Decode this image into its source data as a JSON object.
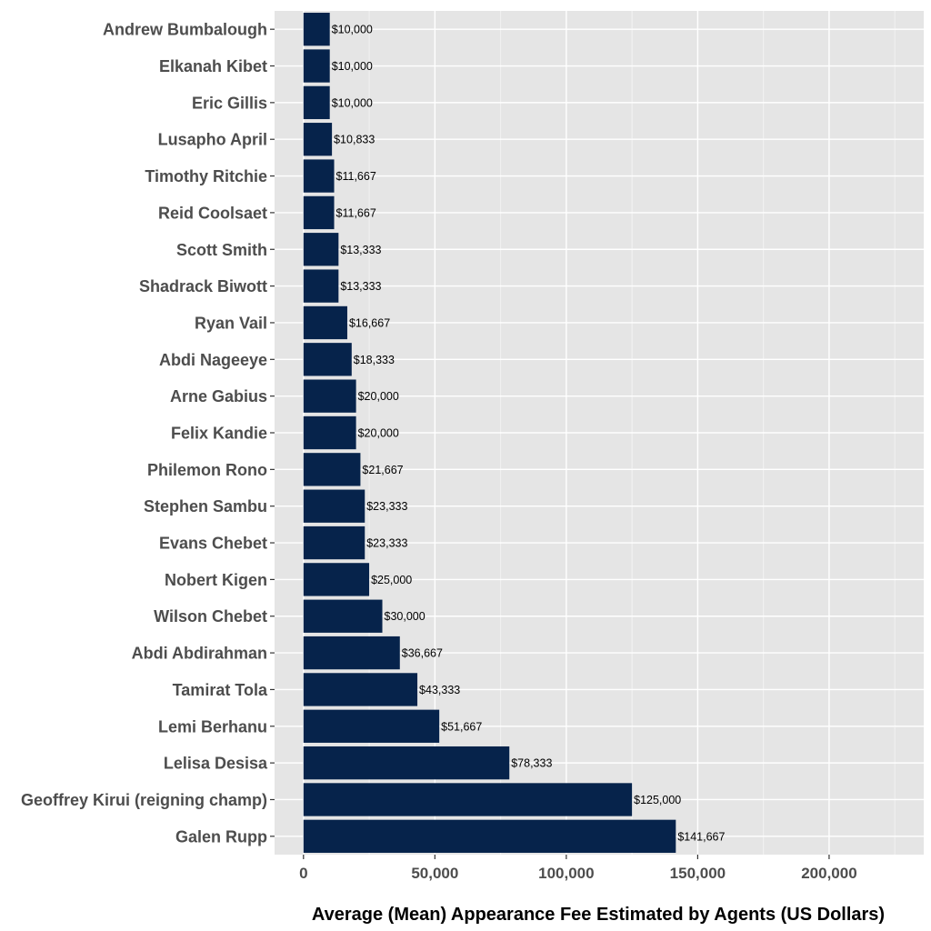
{
  "chart_data": {
    "type": "bar",
    "orientation": "horizontal",
    "title": "",
    "xlabel": "Average (Mean) Appearance Fee Estimated by Agents (US Dollars)",
    "ylabel": "",
    "xlim": [
      -11000,
      236000
    ],
    "x_ticks": [
      0,
      50000,
      100000,
      150000,
      200000
    ],
    "x_tick_labels": [
      "0",
      "50,000",
      "100,000",
      "150,000",
      "200,000"
    ],
    "grid": true,
    "legend": "none",
    "categories": [
      "Andrew Bumbalough",
      "Elkanah Kibet",
      "Eric Gillis",
      "Lusapho April",
      "Timothy Ritchie",
      "Reid Coolsaet",
      "Scott Smith",
      "Shadrack Biwott",
      "Ryan Vail",
      "Abdi Nageeye",
      "Arne Gabius",
      "Felix Kandie",
      "Philemon Rono",
      "Stephen Sambu",
      "Evans Chebet",
      "Nobert Kigen",
      "Wilson Chebet",
      "Abdi Abdirahman",
      "Tamirat Tola",
      "Lemi Berhanu",
      "Lelisa Desisa",
      "Geoffrey Kirui (reigning champ)",
      "Galen Rupp"
    ],
    "values": [
      10000,
      10000,
      10000,
      10833,
      11667,
      11667,
      13333,
      13333,
      16667,
      18333,
      20000,
      20000,
      21667,
      23333,
      23333,
      25000,
      30000,
      36667,
      43333,
      51667,
      78333,
      125000,
      141667
    ],
    "data_labels": [
      "$10,000",
      "$10,000",
      "$10,000",
      "$10,833",
      "$11,667",
      "$11,667",
      "$13,333",
      "$13,333",
      "$16,667",
      "$18,333",
      "$20,000",
      "$20,000",
      "$21,667",
      "$23,333",
      "$23,333",
      "$25,000",
      "$30,000",
      "$36,667",
      "$43,333",
      "$51,667",
      "$78,333",
      "$125,000",
      "$141,667"
    ],
    "colors": {
      "bar": "#06234b",
      "panel_background": "#e5e5e5",
      "grid_major": "#ffffff",
      "grid_minor": "#f2f2f2"
    }
  }
}
